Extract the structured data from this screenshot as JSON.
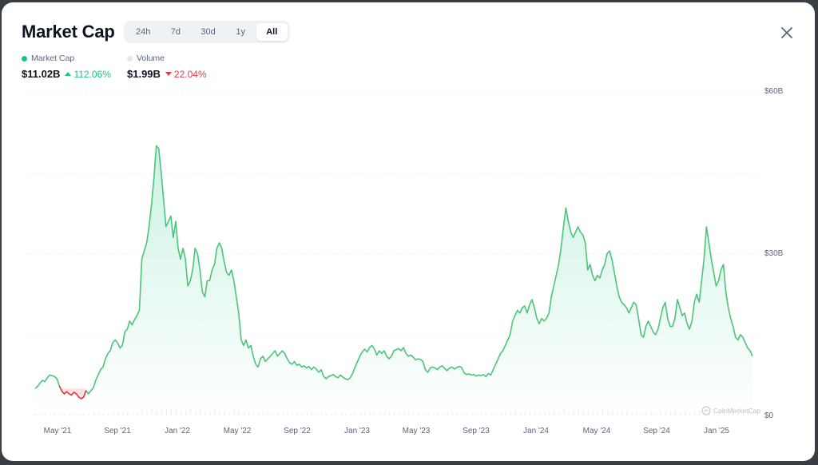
{
  "header": {
    "title": "Market Cap",
    "tabs": [
      {
        "label": "24h",
        "active": false
      },
      {
        "label": "7d",
        "active": false
      },
      {
        "label": "30d",
        "active": false
      },
      {
        "label": "1y",
        "active": false
      },
      {
        "label": "All",
        "active": true
      }
    ],
    "close_icon": "close-icon"
  },
  "legend": {
    "market_cap": {
      "label": "Market Cap",
      "color": "#16c784"
    },
    "volume": {
      "label": "Volume",
      "color": "#e5e7ed"
    }
  },
  "stats": {
    "market_cap": {
      "value": "$11.02B",
      "change": "112.06%",
      "direction": "up"
    },
    "volume": {
      "value": "$1.99B",
      "change": "22.04%",
      "direction": "down"
    }
  },
  "watermark": "CoinMarketCap",
  "colors": {
    "up": "#16c784",
    "down": "#ea3943",
    "line": "#4cc47a",
    "area": "#16c784",
    "grid": "#eff2f5"
  },
  "chart_data": {
    "type": "area",
    "y_ticks": [
      "$0",
      "$30B",
      "$60B"
    ],
    "ylim": [
      0,
      60
    ],
    "x_ticks": [
      "May '21",
      "Sep '21",
      "Jan '22",
      "May '22",
      "Sep '22",
      "Jan '23",
      "May '23",
      "Sep '23",
      "Jan '24",
      "May '24",
      "Sep '24",
      "Jan '25"
    ],
    "grid": true,
    "baseline": 5.0,
    "series": [
      {
        "unit": "B",
        "values": [
          5.0,
          5.4,
          6.0,
          6.5,
          6.3,
          7.0,
          7.5,
          7.4,
          7.2,
          6.8,
          5.5,
          4.5,
          4.0,
          4.4,
          4.0,
          3.8,
          4.3,
          4.0,
          3.4,
          3.1,
          3.4,
          4.6,
          4.0,
          4.6,
          5.1,
          6.5,
          7.5,
          8.5,
          9.0,
          10.5,
          11.5,
          12.0,
          13.5,
          14.0,
          13.5,
          12.5,
          13.0,
          15.5,
          16.0,
          17.5,
          16.8,
          17.8,
          18.5,
          19.5,
          29.0,
          30.5,
          32.0,
          35.0,
          39.0,
          44.0,
          50.0,
          49.5,
          45.0,
          40.0,
          35.0,
          36.0,
          37.0,
          33.0,
          36.0,
          31.0,
          29.0,
          31.0,
          29.0,
          24.0,
          25.0,
          27.0,
          31.0,
          30.0,
          27.0,
          23.0,
          22.0,
          25.0,
          25.0,
          27.0,
          28.0,
          31.0,
          32.0,
          31.0,
          28.5,
          26.5,
          26.0,
          27.0,
          25.0,
          22.0,
          19.0,
          14.0,
          13.0,
          14.0,
          12.5,
          13.0,
          11.0,
          9.5,
          9.0,
          10.5,
          11.0,
          10.0,
          10.5,
          11.0,
          11.5,
          12.0,
          11.0,
          11.5,
          12.0,
          11.5,
          10.5,
          9.8,
          9.5,
          10.0,
          9.3,
          9.5,
          9.0,
          9.2,
          8.8,
          9.1,
          8.5,
          9.0,
          8.6,
          8.0,
          8.5,
          7.3,
          6.8,
          7.2,
          7.4,
          7.6,
          7.2,
          7.0,
          7.5,
          7.1,
          6.8,
          6.6,
          7.0,
          7.8,
          9.0,
          10.0,
          11.0,
          11.8,
          12.3,
          11.8,
          12.6,
          13.0,
          12.3,
          11.2,
          12.0,
          11.5,
          12.0,
          11.0,
          10.5,
          11.0,
          12.0,
          12.2,
          12.4,
          12.0,
          12.6,
          11.5,
          11.0,
          11.2,
          10.8,
          10.3,
          10.5,
          10.4,
          10.0,
          8.5,
          8.0,
          8.8,
          9.0,
          8.8,
          8.5,
          9.0,
          9.2,
          8.7,
          8.3,
          8.8,
          9.0,
          8.6,
          8.9,
          9.1,
          8.9,
          7.9,
          7.6,
          7.7,
          7.5,
          7.6,
          7.3,
          7.5,
          7.4,
          7.6,
          7.2,
          7.8,
          7.5,
          8.5,
          9.5,
          10.5,
          11.5,
          12.0,
          13.0,
          14.0,
          15.0,
          17.5,
          18.5,
          19.5,
          19.0,
          20.0,
          20.3,
          19.0,
          20.5,
          21.5,
          20.0,
          18.0,
          17.0,
          18.0,
          17.5,
          18.0,
          19.0,
          22.0,
          24.0,
          26.0,
          28.0,
          31.0,
          35.0,
          38.5,
          36.0,
          34.0,
          33.0,
          34.0,
          35.0,
          34.0,
          33.5,
          32.0,
          27.0,
          28.0,
          26.0,
          25.0,
          26.0,
          25.5,
          27.0,
          28.0,
          30.0,
          30.5,
          29.0,
          26.5,
          24.0,
          22.0,
          21.0,
          20.5,
          20.0,
          19.0,
          20.0,
          21.0,
          20.5,
          18.0,
          15.0,
          14.5,
          16.5,
          17.5,
          16.5,
          15.5,
          15.0,
          16.0,
          18.0,
          20.0,
          21.0,
          18.0,
          16.5,
          16.5,
          18.0,
          21.5,
          20.0,
          18.5,
          19.0,
          17.0,
          16.0,
          17.5,
          21.0,
          22.5,
          21.0,
          25.0,
          29.0,
          35.0,
          32.0,
          29.0,
          26.5,
          24.0,
          25.0,
          27.0,
          28.0,
          23.0,
          20.0,
          18.0,
          16.5,
          14.5,
          14.0,
          15.0,
          14.5,
          13.5,
          12.5,
          12.0,
          11.0
        ]
      }
    ],
    "highlight": {
      "color": "#ea3943",
      "index_range": [
        10,
        21
      ]
    }
  }
}
